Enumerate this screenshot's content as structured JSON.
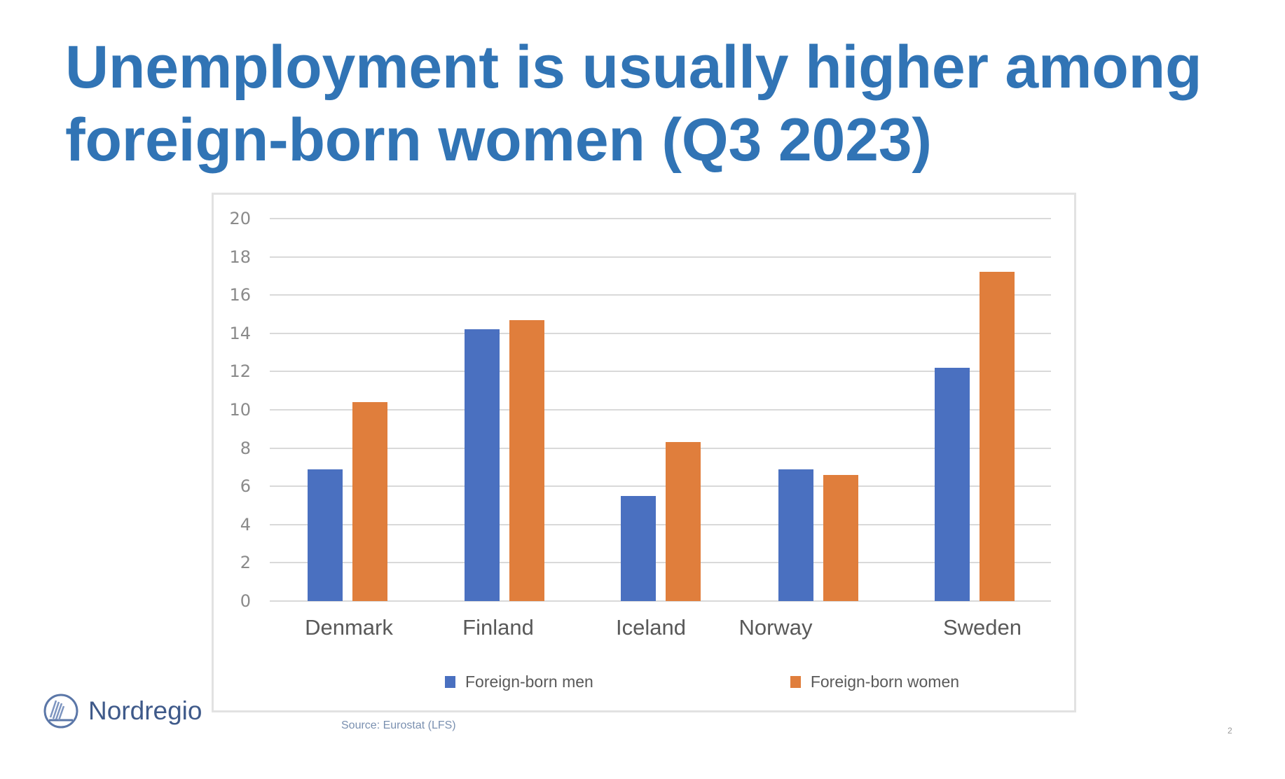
{
  "slide": {
    "title_line1": "Unemployment is usually higher among",
    "title_line2": "foreign-born women (Q3 2023)",
    "source": "Source: Eurostat (LFS)",
    "logo_text": "Nordregio",
    "page_number": "2"
  },
  "colors": {
    "title": "#3174b5",
    "series_men": "#4a70c0",
    "series_women": "#e07e3c"
  },
  "legend": {
    "men": "Foreign-born men",
    "women": "Foreign-born women"
  },
  "chart_data": {
    "type": "bar",
    "title": "Unemployment is usually higher among foreign-born women (Q3 2023)",
    "xlabel": "",
    "ylabel": "",
    "categories": [
      "Denmark",
      "Finland",
      "Iceland",
      "Norway",
      "Sweden"
    ],
    "series": [
      {
        "name": "Foreign-born men",
        "color": "#4a70c0",
        "values": [
          6.9,
          14.2,
          5.5,
          6.9,
          12.2
        ]
      },
      {
        "name": "Foreign-born women",
        "color": "#e07e3c",
        "values": [
          10.4,
          14.7,
          8.3,
          6.6,
          17.2
        ]
      }
    ],
    "ylim": [
      0,
      20
    ],
    "yticks": [
      0,
      2,
      4,
      6,
      8,
      10,
      12,
      14,
      16,
      18,
      20
    ],
    "grid": true,
    "legend_position": "bottom",
    "source": "Source: Eurostat (LFS)"
  }
}
